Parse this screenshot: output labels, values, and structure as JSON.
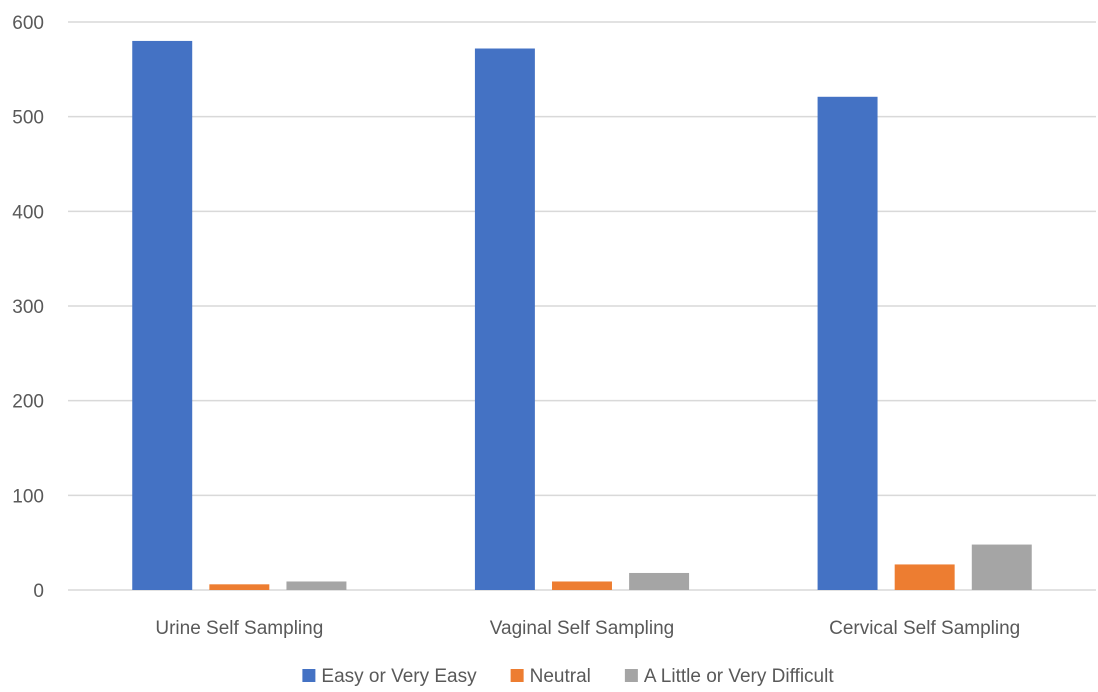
{
  "chart_data": {
    "type": "bar",
    "title": "",
    "xlabel": "",
    "ylabel": "",
    "categories": [
      "Urine Self Sampling",
      "Vaginal Self Sampling",
      "Cervical Self Sampling"
    ],
    "series": [
      {
        "name": "Easy or Very Easy",
        "color": "#4472C4",
        "values": [
          580,
          572,
          521
        ]
      },
      {
        "name": "Neutral",
        "color": "#ED7D31",
        "values": [
          6,
          9,
          27
        ]
      },
      {
        "name": "A Little or Very Difficult",
        "color": "#A5A5A5",
        "values": [
          9,
          18,
          48
        ]
      }
    ],
    "ylim": [
      0,
      600
    ],
    "yticks": [
      0,
      100,
      200,
      300,
      400,
      500,
      600
    ],
    "grid": true,
    "legend_position": "bottom"
  }
}
